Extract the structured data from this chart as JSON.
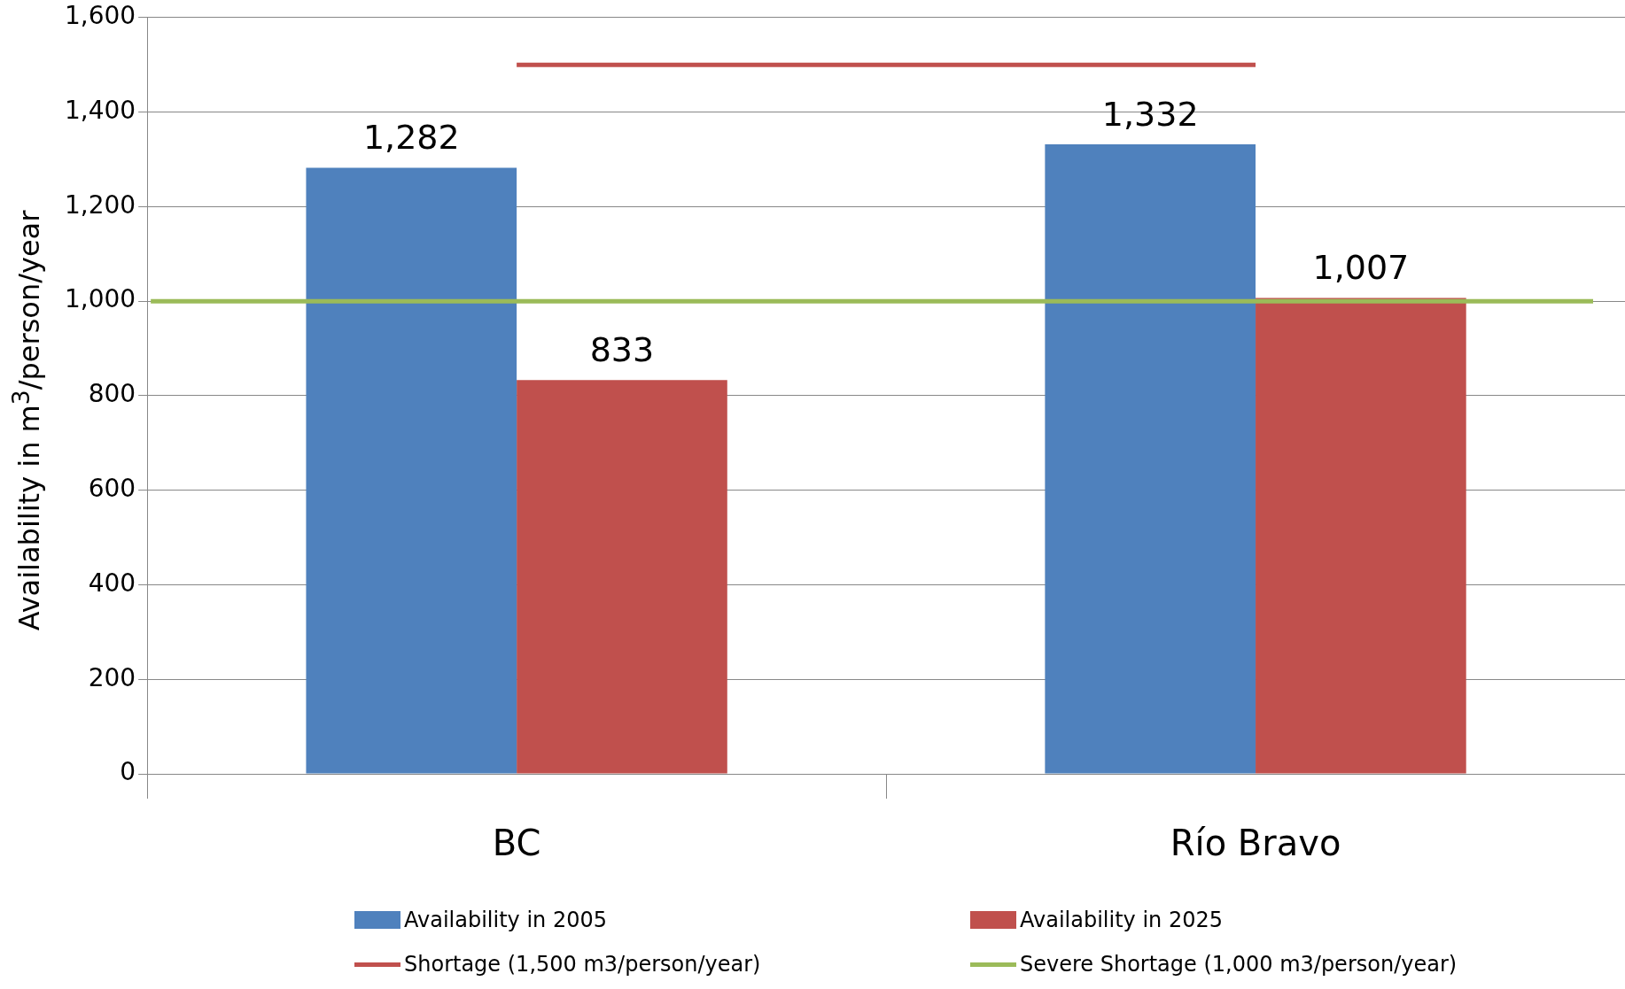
{
  "chart_data": {
    "type": "bar",
    "ylabel": "Availability in m$^{3}$/person/year",
    "categories": [
      "BC",
      "Río Bravo"
    ],
    "series": [
      {
        "name": "Availability in 2005",
        "color": "#4f81bd",
        "values": [
          1282,
          1332
        ],
        "value_labels": [
          "1,282",
          "1,332"
        ]
      },
      {
        "name": "Availability in 2025",
        "color": "#c0504d",
        "values": [
          833,
          1007
        ],
        "value_labels": [
          "833",
          "1,007"
        ]
      },
      {
        "name": "Shortage (1,500 m3/person/year)",
        "type": "line",
        "color": "#c0504d",
        "values": [
          1500,
          1500
        ]
      }
    ],
    "ref_lines": [
      {
        "axis": "y",
        "value": 1000,
        "label": "Severe Shortage (1,000 m3/person/year)",
        "color": "#9bbb59"
      }
    ],
    "ylim": [
      0,
      1600
    ],
    "yticks": [
      0,
      200,
      400,
      600,
      800,
      {
        "value": 1000,
        "label": "1,000"
      },
      {
        "value": 1200,
        "label": "1,200"
      },
      {
        "value": 1400,
        "label": "1,400"
      },
      {
        "value": 1600,
        "label": "1,600"
      }
    ],
    "grid": "y",
    "legend": "bottom"
  }
}
